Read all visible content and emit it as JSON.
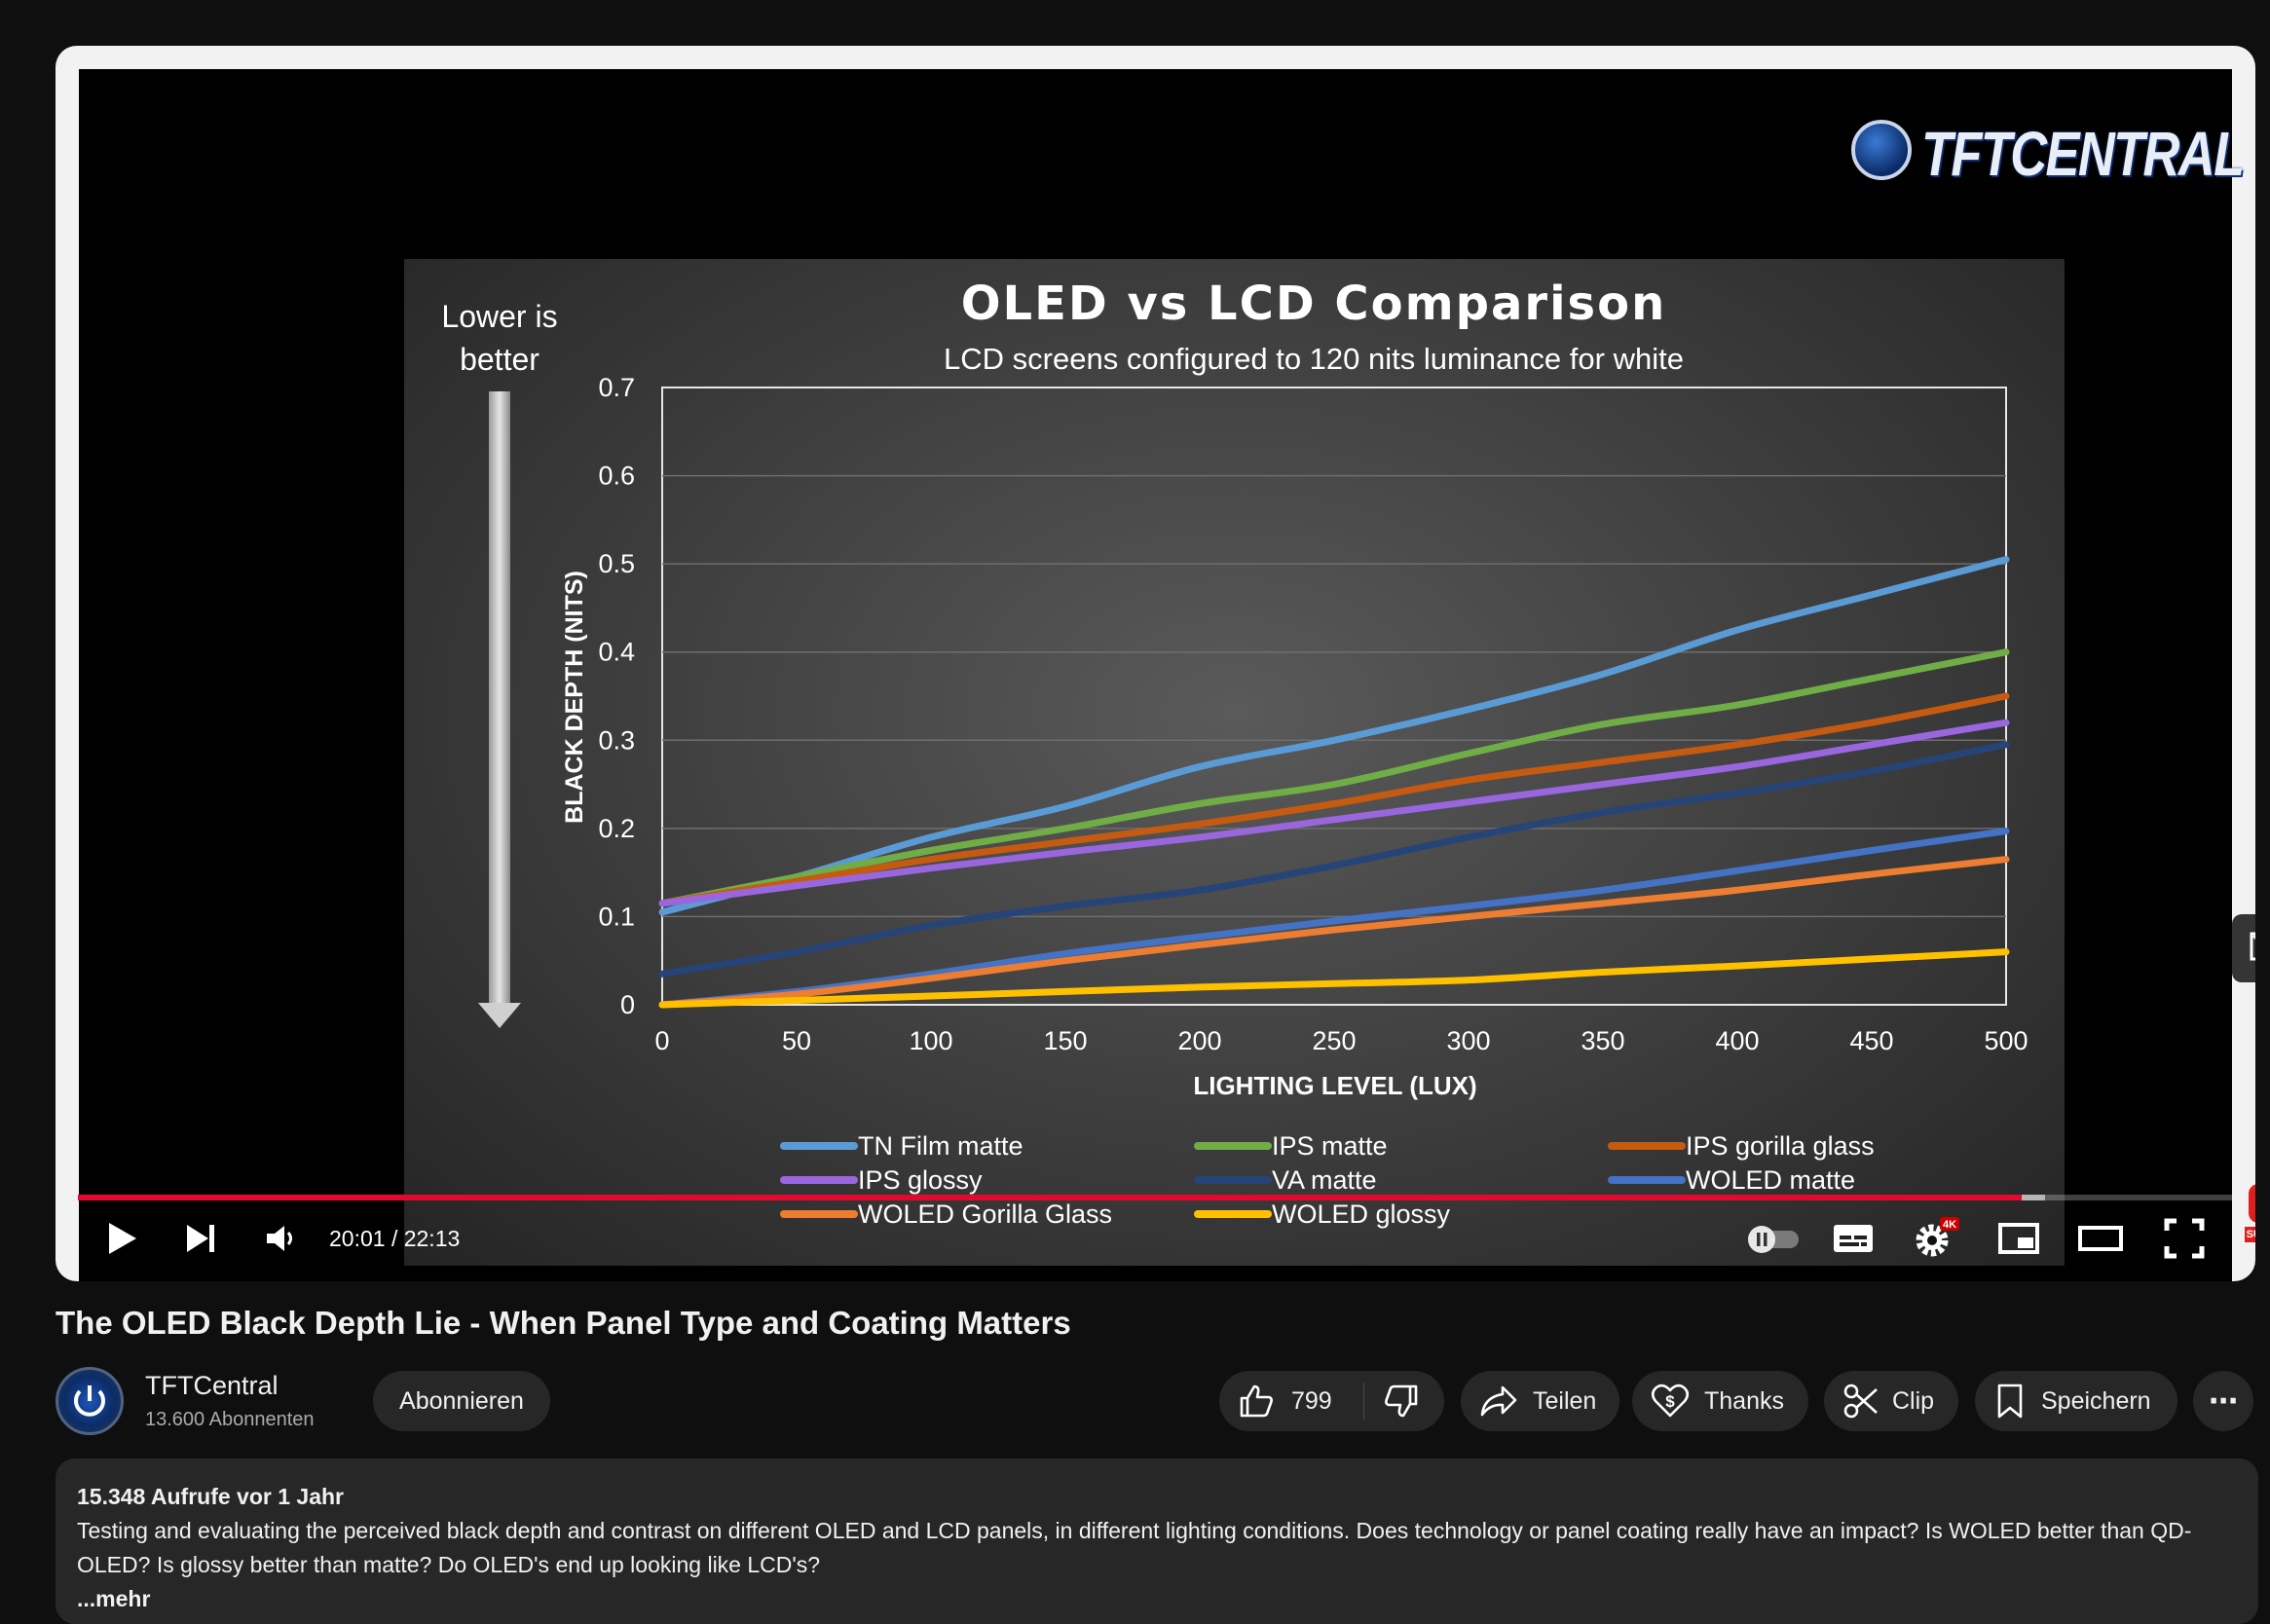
{
  "player": {
    "brand_logo": "TFTCENTRAL",
    "info_icon_label": "i",
    "time_current": "20:01",
    "time_total": "22:13",
    "time_display": "20:01 / 22:13",
    "progress_fraction": 0.9023,
    "buffer_end_fraction": 0.913,
    "settings_badge": "4K",
    "subscribe_badge": "SUBSCRIBE",
    "accent_color": "#e3082f"
  },
  "chart_data": {
    "type": "line",
    "title": "OLED vs LCD Comparison",
    "subtitle": "LCD screens configured to 120 nits luminance for white",
    "xlabel": "LIGHTING LEVEL (LUX)",
    "ylabel": "BLACK DEPTH (NITS)",
    "side_note": [
      "Lower is",
      "better"
    ],
    "xlim": [
      0,
      500
    ],
    "ylim": [
      0,
      0.7
    ],
    "x_ticks": [
      "0",
      "50",
      "100",
      "150",
      "200",
      "250",
      "300",
      "350",
      "400",
      "450",
      "500"
    ],
    "y_ticks": [
      "0",
      "0.1",
      "0.2",
      "0.3",
      "0.4",
      "0.5",
      "0.6",
      "0.7"
    ],
    "grid": true,
    "legend_position": "bottom",
    "x": [
      0,
      50,
      100,
      150,
      200,
      250,
      300,
      350,
      400,
      450,
      500
    ],
    "series": [
      {
        "name": "TN Film matte",
        "color": "#5b9bd5",
        "values": [
          0.105,
          0.145,
          0.19,
          0.225,
          0.27,
          0.3,
          0.335,
          0.375,
          0.425,
          0.465,
          0.505
        ]
      },
      {
        "name": "IPS matte",
        "color": "#70ad47",
        "values": [
          0.115,
          0.145,
          0.175,
          0.2,
          0.228,
          0.25,
          0.285,
          0.318,
          0.34,
          0.37,
          0.4
        ]
      },
      {
        "name": "IPS gorilla glass",
        "color": "#c55a11",
        "values": [
          0.115,
          0.14,
          0.165,
          0.185,
          0.205,
          0.228,
          0.255,
          0.275,
          0.295,
          0.32,
          0.35
        ]
      },
      {
        "name": "IPS glossy",
        "color": "#9966dd",
        "values": [
          0.115,
          0.135,
          0.155,
          0.173,
          0.19,
          0.21,
          0.23,
          0.25,
          0.27,
          0.295,
          0.32
        ]
      },
      {
        "name": "VA matte",
        "color": "#264478",
        "values": [
          0.035,
          0.06,
          0.09,
          0.112,
          0.13,
          0.158,
          0.19,
          0.218,
          0.24,
          0.265,
          0.295
        ]
      },
      {
        "name": "WOLED matte",
        "color": "#4472c4",
        "values": [
          0.0,
          0.015,
          0.035,
          0.058,
          0.077,
          0.095,
          0.112,
          0.13,
          0.152,
          0.175,
          0.197
        ]
      },
      {
        "name": "WOLED Gorilla Glass",
        "color": "#ed7d31",
        "values": [
          0.0,
          0.012,
          0.03,
          0.05,
          0.068,
          0.085,
          0.1,
          0.115,
          0.13,
          0.148,
          0.165
        ]
      },
      {
        "name": "WOLED glossy",
        "color": "#ffc000",
        "values": [
          0.0,
          0.005,
          0.01,
          0.015,
          0.02,
          0.024,
          0.028,
          0.037,
          0.044,
          0.052,
          0.06
        ]
      }
    ]
  },
  "video": {
    "title": "The OLED Black Depth Lie - When Panel Type and Coating Matters"
  },
  "channel": {
    "name": "TFTCentral",
    "subscribers": "13.600 Abonnenten",
    "subscribe_label": "Abonnieren"
  },
  "actions": {
    "likes": "799",
    "share_label": "Teilen",
    "thanks_label": "Thanks",
    "clip_label": "Clip",
    "save_label": "Speichern",
    "more_label": "⋯"
  },
  "description": {
    "stats": "15.348 Aufrufe  vor 1 Jahr",
    "text": "Testing and evaluating the perceived black depth and contrast on different OLED and LCD panels, in different lighting conditions. Does technology or panel coating really have an impact? Is WOLED better than QD-OLED? Is glossy better than matte? Do OLED's end up looking like LCD's?",
    "more_label": " ...mehr"
  }
}
